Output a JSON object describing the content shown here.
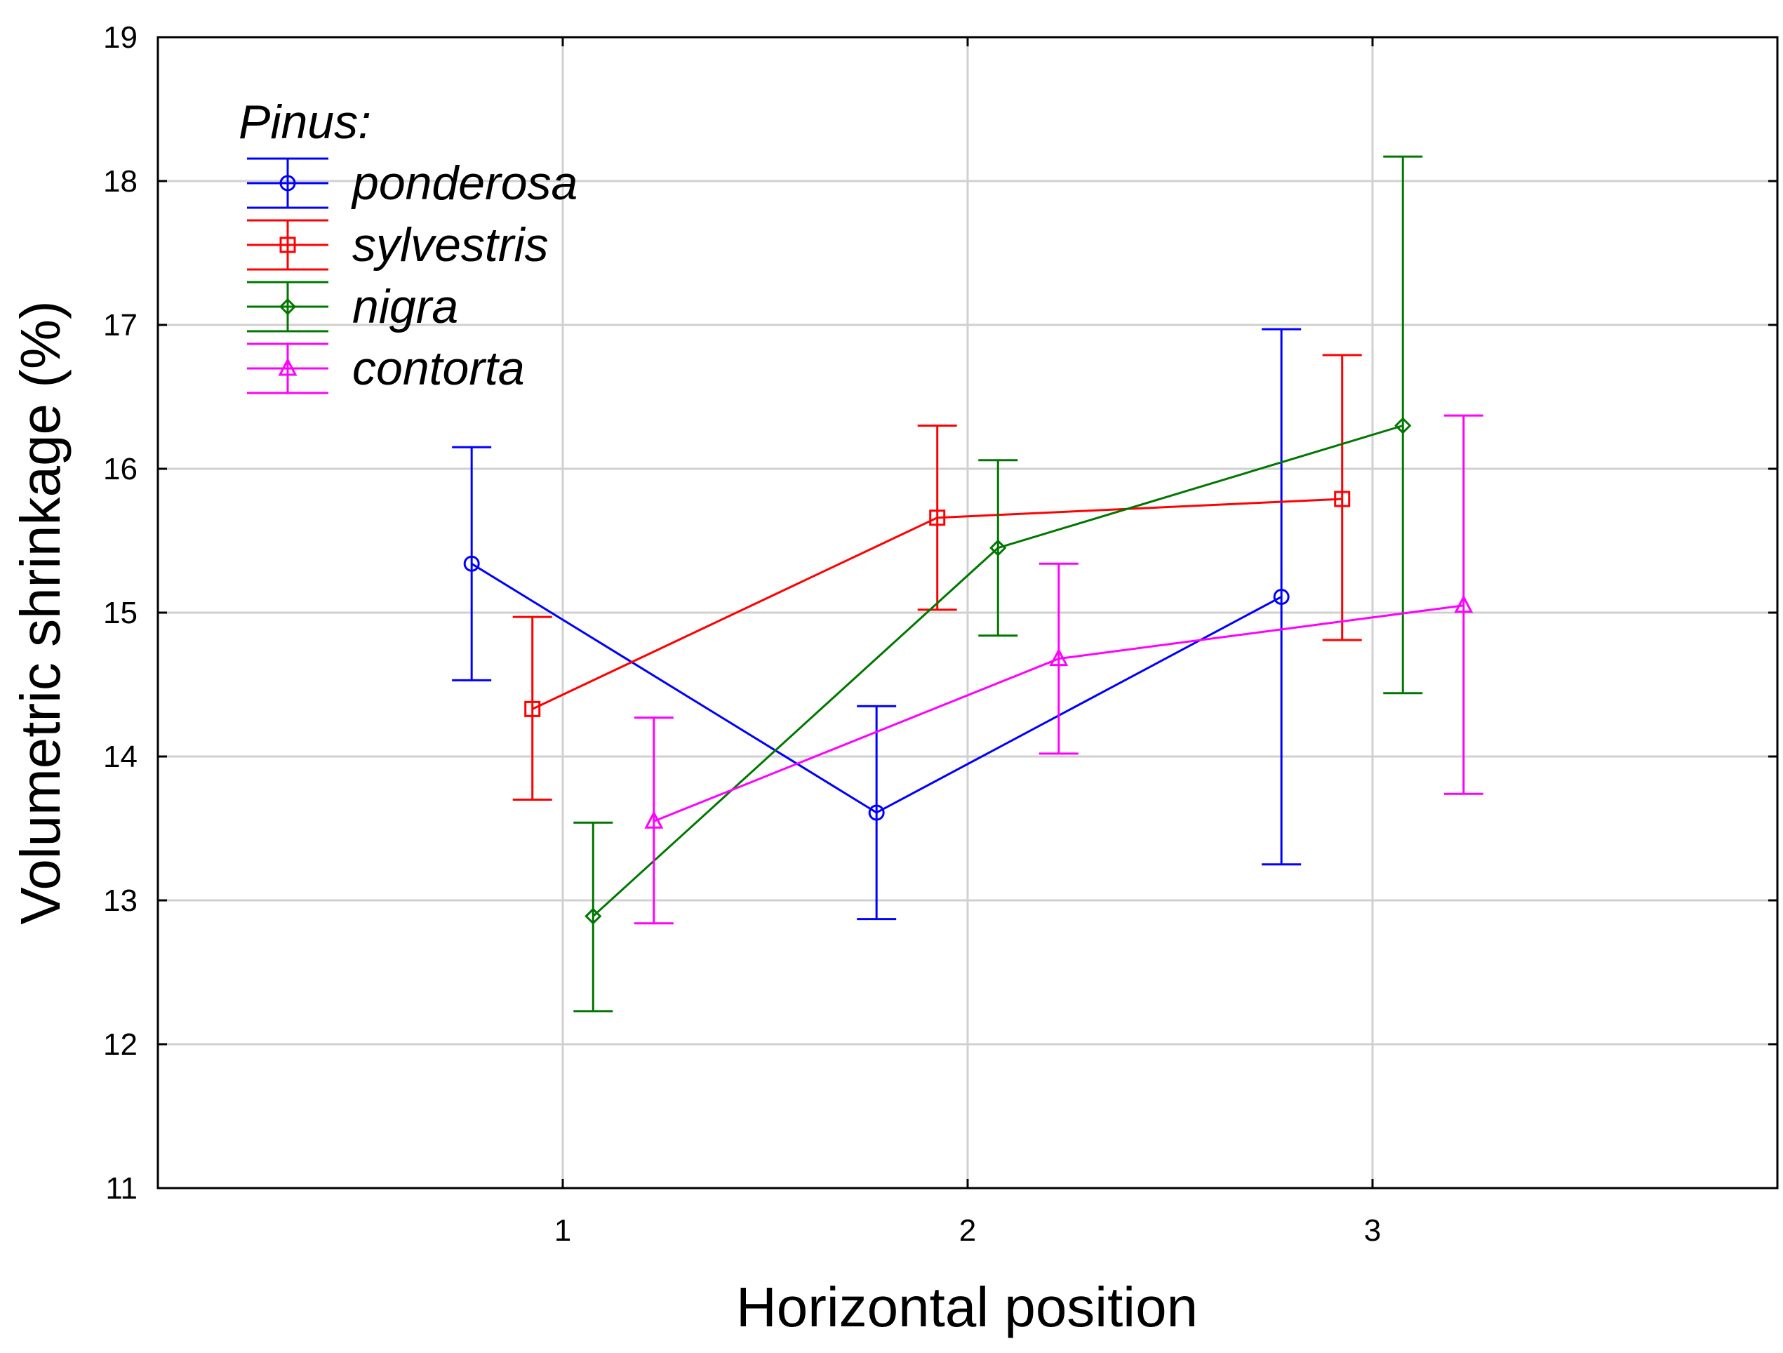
{
  "chart_data": {
    "type": "line",
    "title": "",
    "xlabel": "Horizontal position",
    "ylabel": "Volumetric shrinkage (%)",
    "x_categories": [
      "1",
      "2",
      "3"
    ],
    "xlim": [
      0,
      4
    ],
    "ylim": [
      11,
      19
    ],
    "yticks": [
      "11",
      "12",
      "13",
      "14",
      "15",
      "16",
      "17",
      "18",
      "19"
    ],
    "grid": true,
    "legend": {
      "title": "Pinus:",
      "placement": "top-left"
    },
    "error_bars": true,
    "series": [
      {
        "name": "ponderosa",
        "color": "#0000ff",
        "marker": "circle",
        "offset": -0.225,
        "values": [
          15.34,
          13.61,
          15.11
        ],
        "lower": [
          14.53,
          12.87,
          13.25
        ],
        "upper": [
          16.15,
          14.35,
          16.97
        ]
      },
      {
        "name": "sylvestris",
        "color": "#ff0000",
        "marker": "square",
        "offset": -0.075,
        "values": [
          14.33,
          15.66,
          15.79
        ],
        "lower": [
          13.7,
          15.02,
          14.81
        ],
        "upper": [
          14.97,
          16.3,
          16.79
        ]
      },
      {
        "name": "nigra",
        "color": "#007700",
        "marker": "diamond",
        "offset": 0.075,
        "values": [
          12.89,
          15.45,
          16.3
        ],
        "lower": [
          12.23,
          14.84,
          14.44
        ],
        "upper": [
          13.54,
          16.06,
          18.17
        ]
      },
      {
        "name": "contorta",
        "color": "#ff00ff",
        "marker": "triangle",
        "offset": 0.225,
        "values": [
          13.55,
          14.68,
          15.05
        ],
        "lower": [
          12.84,
          14.02,
          13.74
        ],
        "upper": [
          14.27,
          15.34,
          16.37
        ]
      }
    ]
  }
}
